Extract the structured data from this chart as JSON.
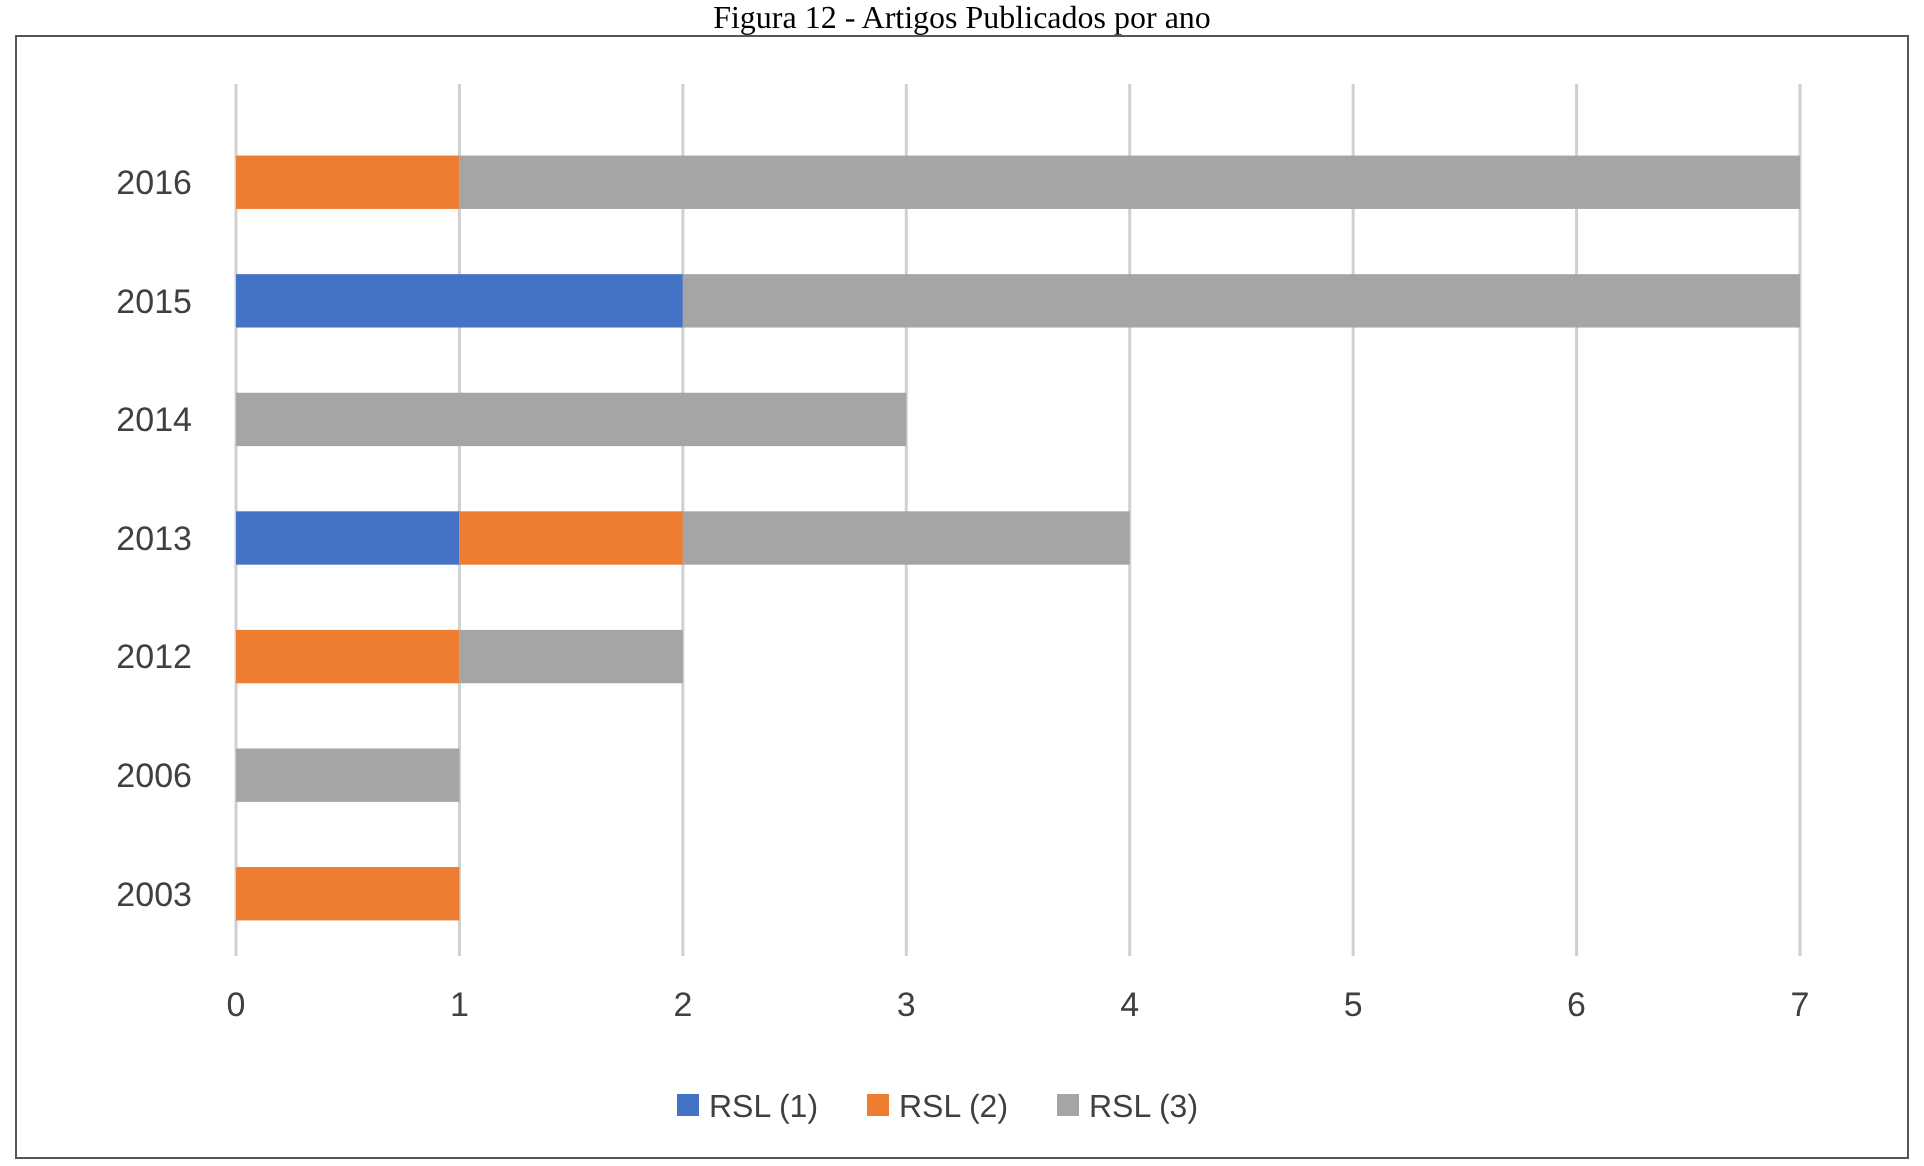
{
  "chart_data": {
    "type": "bar",
    "orientation": "horizontal",
    "stacked": true,
    "title": "Figura 12 - Artigos Publicados por ano",
    "categories": [
      "2016",
      "2015",
      "2014",
      "2013",
      "2012",
      "2006",
      "2003"
    ],
    "series": [
      {
        "name": "RSL (1)",
        "color": "#4472c4",
        "values": [
          0,
          2,
          0,
          1,
          0,
          0,
          0
        ]
      },
      {
        "name": "RSL (2)",
        "color": "#ed7d31",
        "values": [
          1,
          0,
          0,
          1,
          1,
          0,
          1
        ]
      },
      {
        "name": "RSL (3)",
        "color": "#a5a5a5",
        "values": [
          6,
          5,
          3,
          2,
          1,
          1,
          0
        ]
      }
    ],
    "xlim": [
      0,
      7
    ],
    "xticks": [
      0,
      1,
      2,
      3,
      4,
      5,
      6,
      7
    ],
    "grid": "x",
    "legend": "bottom"
  }
}
